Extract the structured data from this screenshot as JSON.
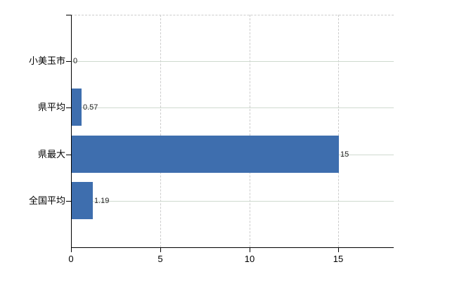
{
  "chart_data": {
    "type": "bar",
    "orientation": "horizontal",
    "title": "",
    "xlabel": "",
    "ylabel": "",
    "categories": [
      "小美玉市",
      "県平均",
      "県最大",
      "全国平均"
    ],
    "values": [
      0,
      0.57,
      15,
      1.19
    ],
    "value_labels": [
      "0",
      "0.57",
      "15",
      "1.19"
    ],
    "x_tick_labels": [
      "0",
      "5",
      "10",
      "15"
    ],
    "x_tick_values": [
      0,
      5,
      10,
      15
    ],
    "xlim": [
      0,
      18.1
    ],
    "grid": true,
    "legend_position": "none",
    "colors": {
      "bar": "#3e6eae",
      "row_gridline": "#cfdacf",
      "dashed_gridline": "#cccccc",
      "axis": "#000000",
      "category_text": "#000000",
      "tick_text": "#000000",
      "value_text": "#222222",
      "background": "#ffffff"
    }
  }
}
